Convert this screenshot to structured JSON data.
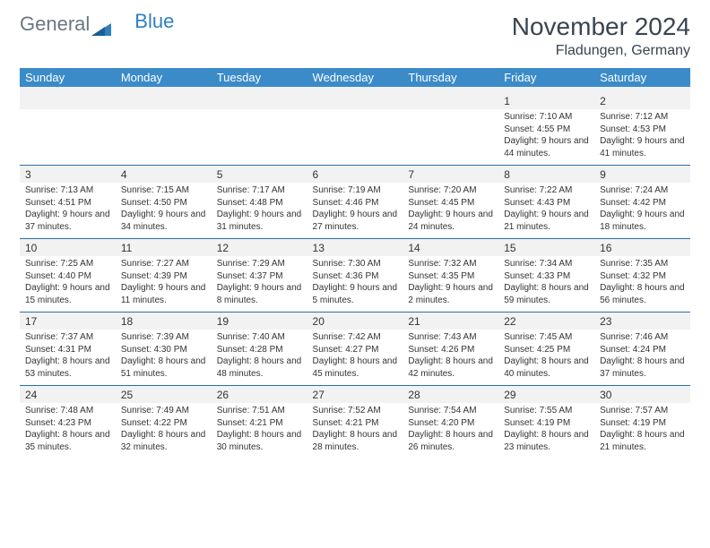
{
  "logo": {
    "part1": "General",
    "part2": "Blue"
  },
  "title": "November 2024",
  "location": "Fladungen, Germany",
  "header_bg": "#3b8bc9",
  "header_text_color": "#ffffff",
  "daynum_bg": "#f2f2f2",
  "row_separator_color": "#2b6fa8",
  "font_family": "Arial",
  "day_headers": [
    "Sunday",
    "Monday",
    "Tuesday",
    "Wednesday",
    "Thursday",
    "Friday",
    "Saturday"
  ],
  "weeks": [
    {
      "days": [
        {
          "num": "",
          "sunrise": "",
          "sunset": "",
          "daylight": ""
        },
        {
          "num": "",
          "sunrise": "",
          "sunset": "",
          "daylight": ""
        },
        {
          "num": "",
          "sunrise": "",
          "sunset": "",
          "daylight": ""
        },
        {
          "num": "",
          "sunrise": "",
          "sunset": "",
          "daylight": ""
        },
        {
          "num": "",
          "sunrise": "",
          "sunset": "",
          "daylight": ""
        },
        {
          "num": "1",
          "sunrise": "Sunrise: 7:10 AM",
          "sunset": "Sunset: 4:55 PM",
          "daylight": "Daylight: 9 hours and 44 minutes."
        },
        {
          "num": "2",
          "sunrise": "Sunrise: 7:12 AM",
          "sunset": "Sunset: 4:53 PM",
          "daylight": "Daylight: 9 hours and 41 minutes."
        }
      ]
    },
    {
      "days": [
        {
          "num": "3",
          "sunrise": "Sunrise: 7:13 AM",
          "sunset": "Sunset: 4:51 PM",
          "daylight": "Daylight: 9 hours and 37 minutes."
        },
        {
          "num": "4",
          "sunrise": "Sunrise: 7:15 AM",
          "sunset": "Sunset: 4:50 PM",
          "daylight": "Daylight: 9 hours and 34 minutes."
        },
        {
          "num": "5",
          "sunrise": "Sunrise: 7:17 AM",
          "sunset": "Sunset: 4:48 PM",
          "daylight": "Daylight: 9 hours and 31 minutes."
        },
        {
          "num": "6",
          "sunrise": "Sunrise: 7:19 AM",
          "sunset": "Sunset: 4:46 PM",
          "daylight": "Daylight: 9 hours and 27 minutes."
        },
        {
          "num": "7",
          "sunrise": "Sunrise: 7:20 AM",
          "sunset": "Sunset: 4:45 PM",
          "daylight": "Daylight: 9 hours and 24 minutes."
        },
        {
          "num": "8",
          "sunrise": "Sunrise: 7:22 AM",
          "sunset": "Sunset: 4:43 PM",
          "daylight": "Daylight: 9 hours and 21 minutes."
        },
        {
          "num": "9",
          "sunrise": "Sunrise: 7:24 AM",
          "sunset": "Sunset: 4:42 PM",
          "daylight": "Daylight: 9 hours and 18 minutes."
        }
      ]
    },
    {
      "days": [
        {
          "num": "10",
          "sunrise": "Sunrise: 7:25 AM",
          "sunset": "Sunset: 4:40 PM",
          "daylight": "Daylight: 9 hours and 15 minutes."
        },
        {
          "num": "11",
          "sunrise": "Sunrise: 7:27 AM",
          "sunset": "Sunset: 4:39 PM",
          "daylight": "Daylight: 9 hours and 11 minutes."
        },
        {
          "num": "12",
          "sunrise": "Sunrise: 7:29 AM",
          "sunset": "Sunset: 4:37 PM",
          "daylight": "Daylight: 9 hours and 8 minutes."
        },
        {
          "num": "13",
          "sunrise": "Sunrise: 7:30 AM",
          "sunset": "Sunset: 4:36 PM",
          "daylight": "Daylight: 9 hours and 5 minutes."
        },
        {
          "num": "14",
          "sunrise": "Sunrise: 7:32 AM",
          "sunset": "Sunset: 4:35 PM",
          "daylight": "Daylight: 9 hours and 2 minutes."
        },
        {
          "num": "15",
          "sunrise": "Sunrise: 7:34 AM",
          "sunset": "Sunset: 4:33 PM",
          "daylight": "Daylight: 8 hours and 59 minutes."
        },
        {
          "num": "16",
          "sunrise": "Sunrise: 7:35 AM",
          "sunset": "Sunset: 4:32 PM",
          "daylight": "Daylight: 8 hours and 56 minutes."
        }
      ]
    },
    {
      "days": [
        {
          "num": "17",
          "sunrise": "Sunrise: 7:37 AM",
          "sunset": "Sunset: 4:31 PM",
          "daylight": "Daylight: 8 hours and 53 minutes."
        },
        {
          "num": "18",
          "sunrise": "Sunrise: 7:39 AM",
          "sunset": "Sunset: 4:30 PM",
          "daylight": "Daylight: 8 hours and 51 minutes."
        },
        {
          "num": "19",
          "sunrise": "Sunrise: 7:40 AM",
          "sunset": "Sunset: 4:28 PM",
          "daylight": "Daylight: 8 hours and 48 minutes."
        },
        {
          "num": "20",
          "sunrise": "Sunrise: 7:42 AM",
          "sunset": "Sunset: 4:27 PM",
          "daylight": "Daylight: 8 hours and 45 minutes."
        },
        {
          "num": "21",
          "sunrise": "Sunrise: 7:43 AM",
          "sunset": "Sunset: 4:26 PM",
          "daylight": "Daylight: 8 hours and 42 minutes."
        },
        {
          "num": "22",
          "sunrise": "Sunrise: 7:45 AM",
          "sunset": "Sunset: 4:25 PM",
          "daylight": "Daylight: 8 hours and 40 minutes."
        },
        {
          "num": "23",
          "sunrise": "Sunrise: 7:46 AM",
          "sunset": "Sunset: 4:24 PM",
          "daylight": "Daylight: 8 hours and 37 minutes."
        }
      ]
    },
    {
      "days": [
        {
          "num": "24",
          "sunrise": "Sunrise: 7:48 AM",
          "sunset": "Sunset: 4:23 PM",
          "daylight": "Daylight: 8 hours and 35 minutes."
        },
        {
          "num": "25",
          "sunrise": "Sunrise: 7:49 AM",
          "sunset": "Sunset: 4:22 PM",
          "daylight": "Daylight: 8 hours and 32 minutes."
        },
        {
          "num": "26",
          "sunrise": "Sunrise: 7:51 AM",
          "sunset": "Sunset: 4:21 PM",
          "daylight": "Daylight: 8 hours and 30 minutes."
        },
        {
          "num": "27",
          "sunrise": "Sunrise: 7:52 AM",
          "sunset": "Sunset: 4:21 PM",
          "daylight": "Daylight: 8 hours and 28 minutes."
        },
        {
          "num": "28",
          "sunrise": "Sunrise: 7:54 AM",
          "sunset": "Sunset: 4:20 PM",
          "daylight": "Daylight: 8 hours and 26 minutes."
        },
        {
          "num": "29",
          "sunrise": "Sunrise: 7:55 AM",
          "sunset": "Sunset: 4:19 PM",
          "daylight": "Daylight: 8 hours and 23 minutes."
        },
        {
          "num": "30",
          "sunrise": "Sunrise: 7:57 AM",
          "sunset": "Sunset: 4:19 PM",
          "daylight": "Daylight: 8 hours and 21 minutes."
        }
      ]
    }
  ]
}
